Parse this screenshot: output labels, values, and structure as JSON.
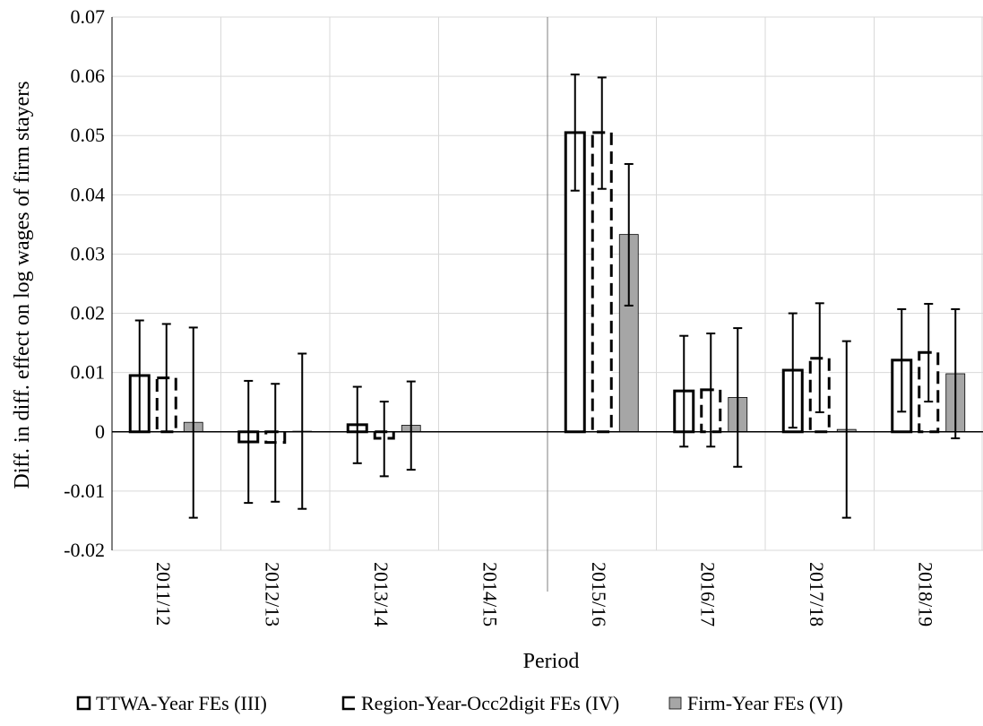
{
  "chart_data": {
    "type": "bar",
    "title": "",
    "xlabel": "Period",
    "ylabel": "Diff. in diff. effect on log wages of firm stayers",
    "ylim": [
      -0.02,
      0.07
    ],
    "ytick_step": 0.01,
    "ytick_labels": [
      "-0.02",
      "-0.01",
      "0",
      "0.01",
      "0.02",
      "0.03",
      "0.04",
      "0.05",
      "0.06",
      "0.07"
    ],
    "grid": true,
    "legend_position": "bottom",
    "categories": [
      "2011/12",
      "2012/13",
      "2013/14",
      "2014/15",
      "2015/16",
      "2016/17",
      "2017/18",
      "2018/19"
    ],
    "reference_line_after_category": "2014/15",
    "series": [
      {
        "name": "TTWA-Year FEs (III)",
        "style": "outline-solid",
        "values": [
          0.0095,
          -0.0017,
          0.0012,
          0,
          0.0505,
          0.0069,
          0.0104,
          0.0121
        ],
        "ci_low": [
          0.0,
          -0.012,
          -0.0053,
          0,
          0.0407,
          -0.0025,
          0.0007,
          0.0034
        ],
        "ci_high": [
          0.0188,
          0.0086,
          0.0076,
          0,
          0.0603,
          0.0162,
          0.02,
          0.0207
        ]
      },
      {
        "name": "Region-Year-Occ2digit FEs (IV)",
        "style": "outline-dashed",
        "values": [
          0.0091,
          -0.0018,
          -0.0011,
          0,
          0.0505,
          0.0071,
          0.0124,
          0.0134
        ],
        "ci_low": [
          0.0,
          -0.0118,
          -0.0075,
          0,
          0.041,
          -0.0025,
          0.0033,
          0.0051
        ],
        "ci_high": [
          0.0182,
          0.0081,
          0.0051,
          0,
          0.0598,
          0.0166,
          0.0217,
          0.0216
        ]
      },
      {
        "name": "Firm-Year FEs (VI)",
        "style": "filled",
        "values": [
          0.0016,
          0.0001,
          0.0011,
          0,
          0.0333,
          0.0058,
          0.0004,
          0.0098
        ],
        "ci_low": [
          -0.0145,
          -0.013,
          -0.0064,
          0,
          0.0213,
          -0.0059,
          -0.0145,
          -0.0011
        ],
        "ci_high": [
          0.0176,
          0.0132,
          0.0085,
          0,
          0.0452,
          0.0175,
          0.0153,
          0.0207
        ]
      }
    ],
    "colors": {
      "bar_outline": "#000000",
      "bar_fill_firm": "#a6a6a6",
      "grid": "#d9d9d9",
      "reference_line": "#7f7f7f"
    }
  }
}
